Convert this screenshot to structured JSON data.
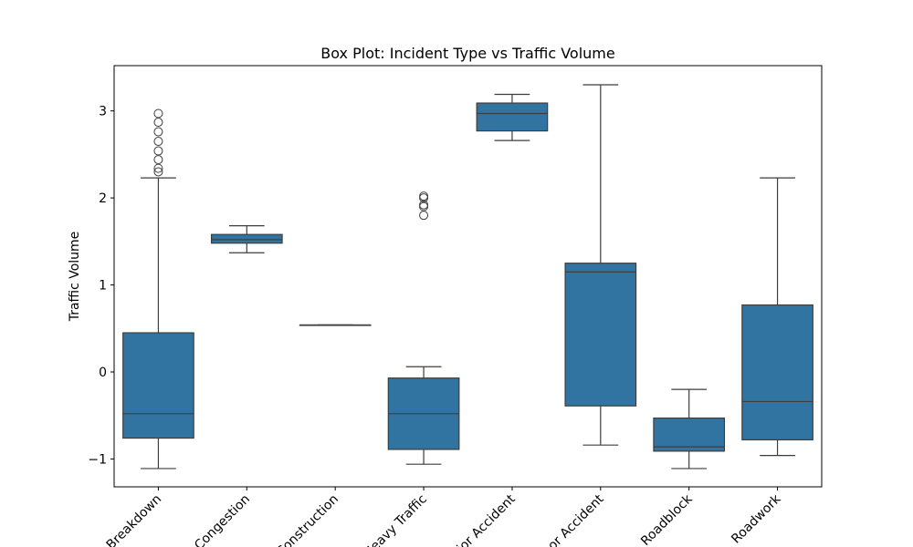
{
  "chart_data": {
    "type": "box",
    "title": "Box Plot: Incident Type vs Traffic Volume",
    "xlabel": "",
    "ylabel": "Traffic Volume",
    "ylim": [
      -1.32,
      3.52
    ],
    "yticks": [
      -1,
      0,
      1,
      2,
      3
    ],
    "categories": [
      "Breakdown",
      "Congestion",
      "Construction",
      "Heavy Traffic",
      "Major Accident",
      "Minor Accident",
      "Roadblock",
      "Roadwork"
    ],
    "boxes": [
      {
        "category": "Breakdown",
        "whisker_low": -1.11,
        "q1": -0.76,
        "median": -0.48,
        "q3": 0.45,
        "whisker_high": 2.23,
        "outliers": [
          2.3,
          2.34,
          2.44,
          2.54,
          2.65,
          2.76,
          2.87,
          2.97
        ]
      },
      {
        "category": "Congestion",
        "whisker_low": 1.37,
        "q1": 1.48,
        "median": 1.52,
        "q3": 1.58,
        "whisker_high": 1.68,
        "outliers": []
      },
      {
        "category": "Construction",
        "whisker_low": 0.54,
        "q1": 0.54,
        "median": 0.54,
        "q3": 0.54,
        "whisker_high": 0.54,
        "outliers": []
      },
      {
        "category": "Heavy Traffic",
        "whisker_low": -1.06,
        "q1": -0.89,
        "median": -0.48,
        "q3": -0.07,
        "whisker_high": 0.06,
        "outliers": [
          1.8,
          1.9,
          1.92,
          2.0,
          2.02
        ]
      },
      {
        "category": "Major Accident",
        "whisker_low": 2.66,
        "q1": 2.77,
        "median": 2.97,
        "q3": 3.09,
        "whisker_high": 3.19,
        "outliers": []
      },
      {
        "category": "Minor Accident",
        "whisker_low": -0.84,
        "q1": -0.39,
        "median": 1.15,
        "q3": 1.25,
        "whisker_high": 3.3,
        "outliers": []
      },
      {
        "category": "Roadblock",
        "whisker_low": -1.11,
        "q1": -0.91,
        "median": -0.86,
        "q3": -0.53,
        "whisker_high": -0.2,
        "outliers": []
      },
      {
        "category": "Roadwork",
        "whisker_low": -0.96,
        "q1": -0.78,
        "median": -0.34,
        "q3": 0.77,
        "whisker_high": 2.23,
        "outliers": []
      }
    ],
    "colors": {
      "box_fill": "#3274a1",
      "line": "#3d3d3d",
      "axis": "#000000"
    },
    "grid": false
  }
}
